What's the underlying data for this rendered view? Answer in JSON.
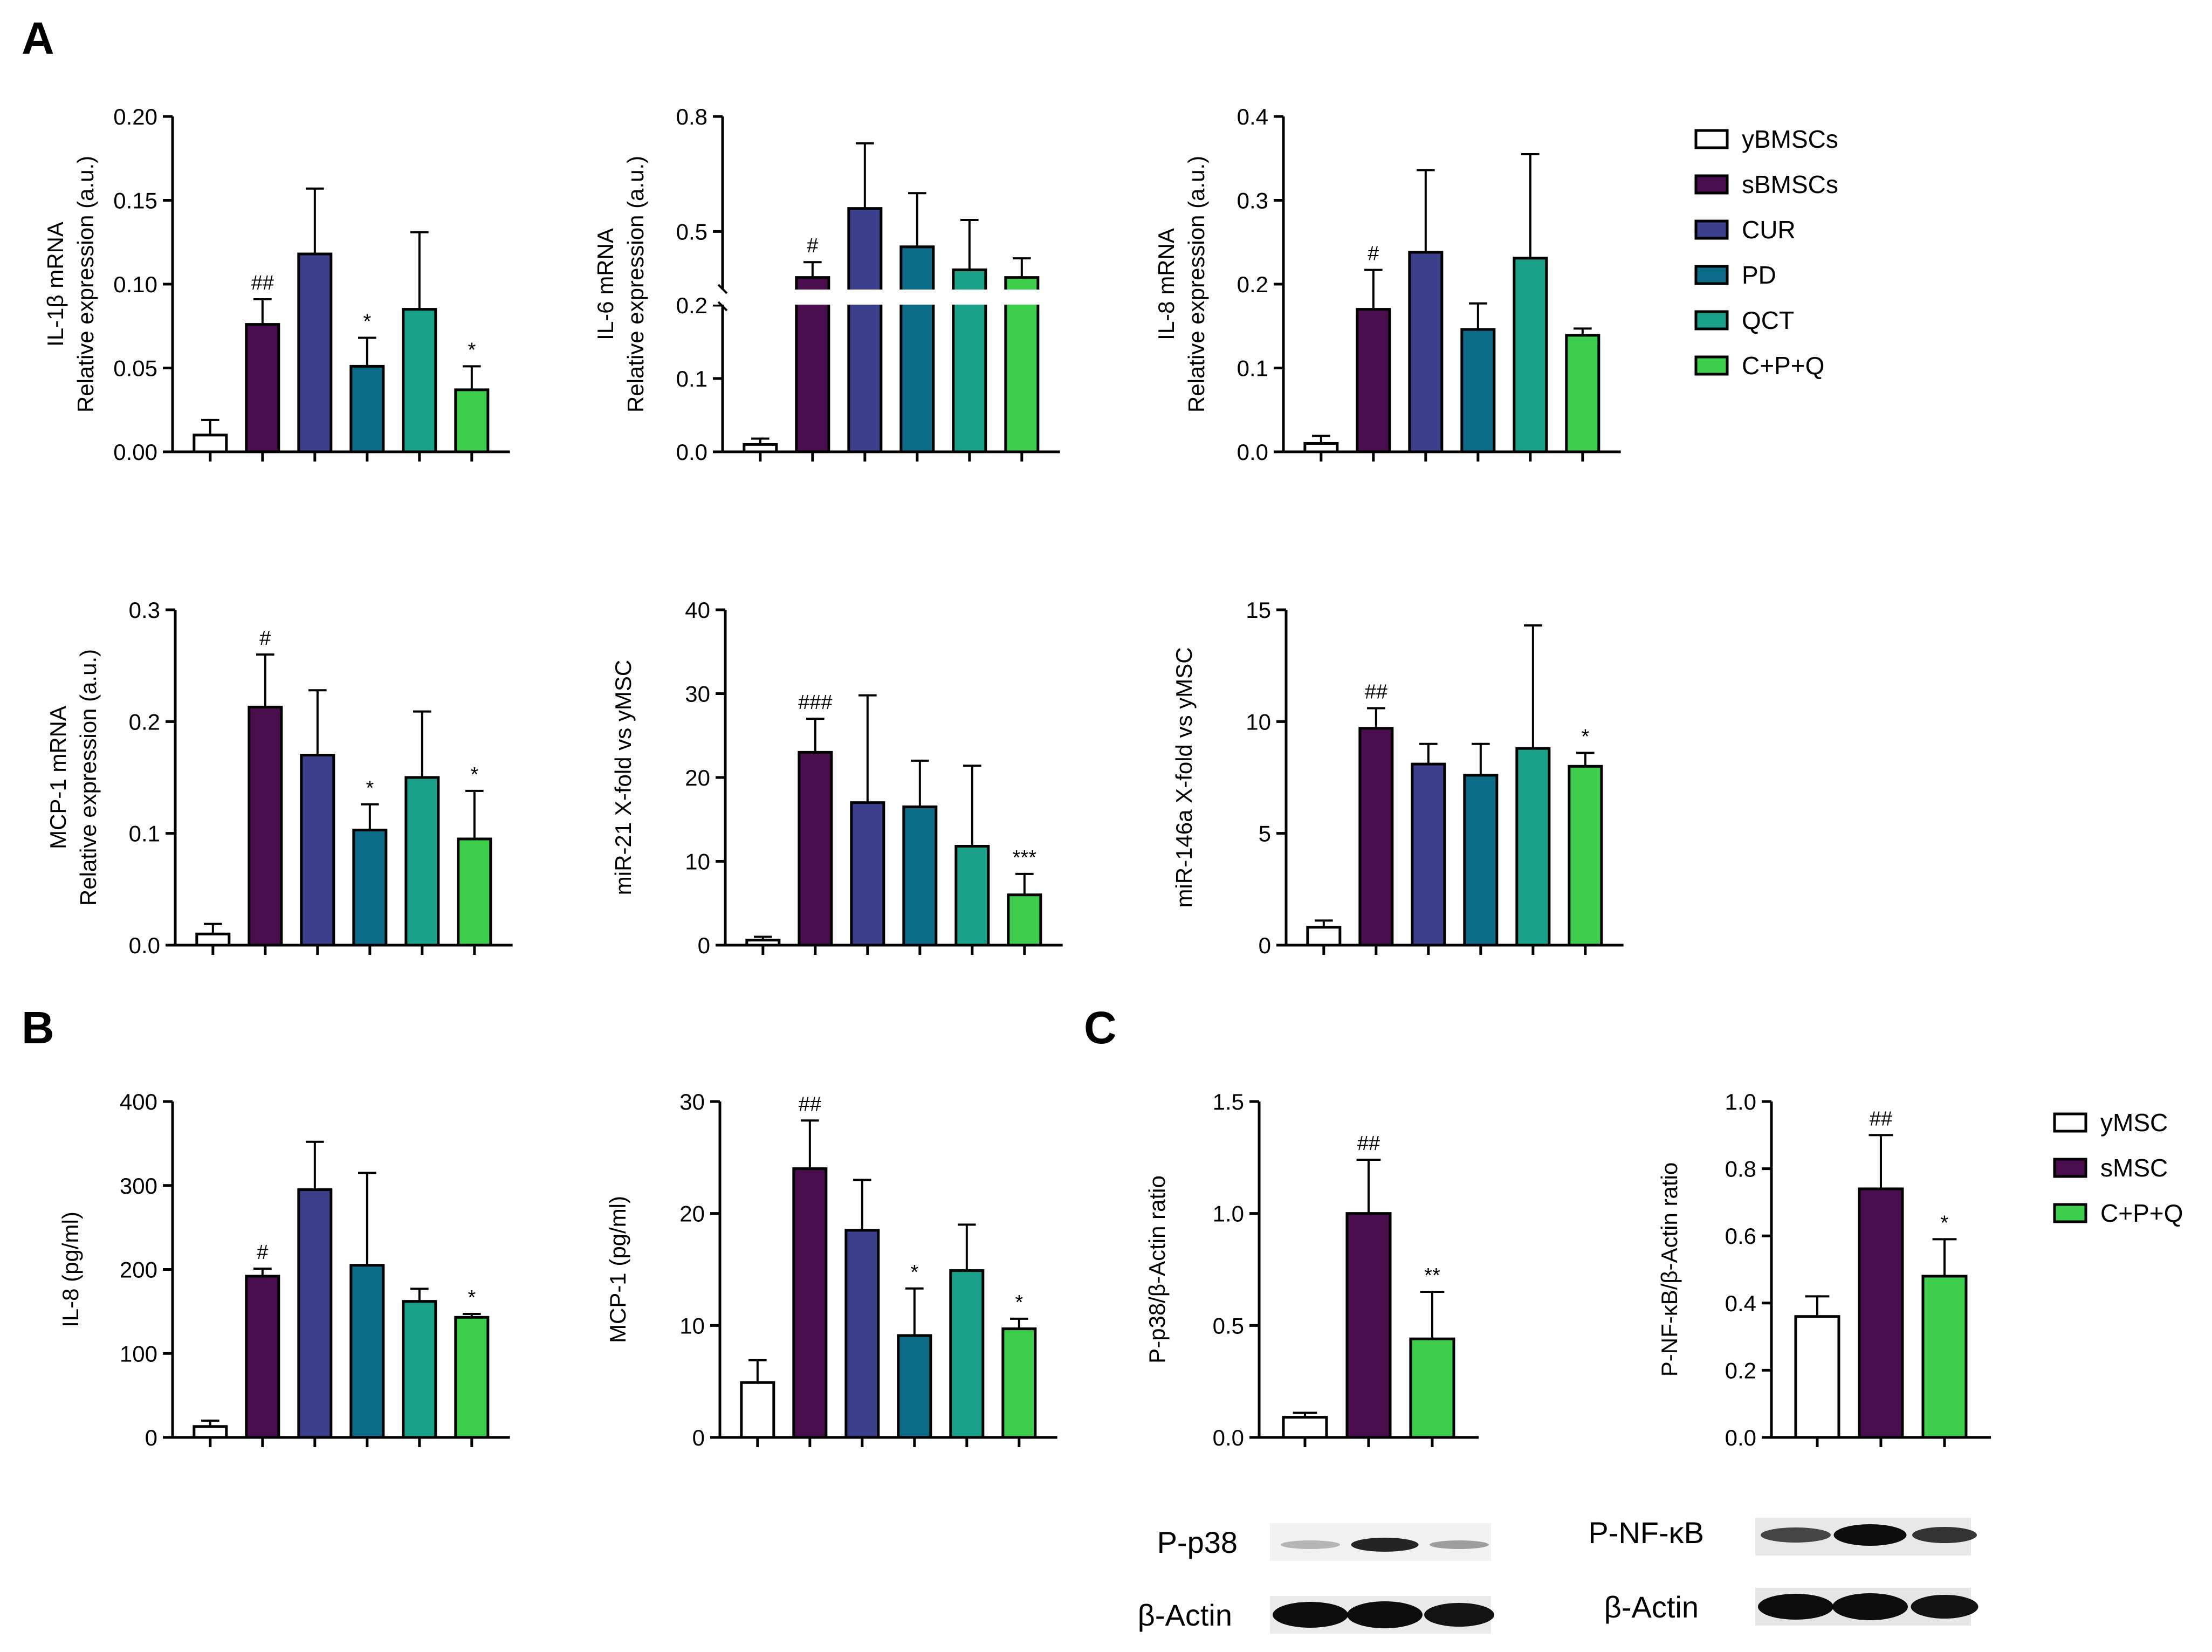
{
  "panel_labels": [
    "A",
    "B",
    "C"
  ],
  "colors": {
    "yBMSCs": "#ffffff",
    "sBMSCs": "#4a0d4e",
    "CUR": "#3b3f8c",
    "PD": "#0c6b86",
    "QCT": "#1aa18a",
    "C+P+Q": "#3dce4b",
    "axis": "#000000"
  },
  "legend_top": [
    {
      "label": "yBMSCs",
      "color": "#ffffff"
    },
    {
      "label": "sBMSCs",
      "color": "#4a0d4e"
    },
    {
      "label": "CUR",
      "color": "#3b3f8c"
    },
    {
      "label": "PD",
      "color": "#0c6b86"
    },
    {
      "label": "QCT",
      "color": "#1aa18a"
    },
    {
      "label": "C+P+Q",
      "color": "#3dce4b"
    }
  ],
  "legend_c": [
    {
      "label": "yMSC",
      "color": "#ffffff"
    },
    {
      "label": "sMSC",
      "color": "#4a0d4e"
    },
    {
      "label": "C+P+Q",
      "color": "#3dce4b"
    }
  ],
  "blots": {
    "left": {
      "labels": [
        "P-p38",
        "β-Actin"
      ]
    },
    "right": {
      "labels": [
        "P-NF-κB",
        "β-Actin"
      ]
    }
  },
  "chart_data": [
    {
      "id": "il1b",
      "panel": "A",
      "type": "bar",
      "ylabel": [
        "IL-1β mRNA",
        "Relative expression (a.u.)"
      ],
      "ylim": [
        0,
        0.2
      ],
      "yticks": [
        "0.00",
        "0.05",
        "0.10",
        "0.15",
        "0.20"
      ],
      "categories": [
        "yBMSCs",
        "sBMSCs",
        "CUR",
        "PD",
        "QCT",
        "C+P+Q"
      ],
      "values": [
        0.01,
        0.076,
        0.118,
        0.051,
        0.085,
        0.037
      ],
      "errors": [
        0.009,
        0.015,
        0.039,
        0.017,
        0.046,
        0.014
      ],
      "annotations": [
        "",
        "##",
        "",
        "*",
        "",
        "*"
      ]
    },
    {
      "id": "il6",
      "panel": "A",
      "type": "bar",
      "ylabel": [
        "IL-6 mRNA",
        "Relative expression (a.u.)"
      ],
      "ylim": [
        0,
        0.8
      ],
      "yticks": [
        "0.0",
        "0.1",
        "0.2",
        "0.5",
        "0.8"
      ],
      "axis_break": {
        "lower": [
          0,
          0.2
        ],
        "upper": [
          0.35,
          0.8
        ]
      },
      "categories": [
        "yBMSCs",
        "sBMSCs",
        "CUR",
        "PD",
        "QCT",
        "C+P+Q"
      ],
      "values": [
        0.01,
        0.38,
        0.56,
        0.46,
        0.4,
        0.38
      ],
      "errors": [
        0.008,
        0.04,
        0.17,
        0.14,
        0.13,
        0.05
      ],
      "annotations": [
        "",
        "#",
        "",
        "",
        "",
        ""
      ]
    },
    {
      "id": "il8mrna",
      "panel": "A",
      "type": "bar",
      "ylabel": [
        "IL-8 mRNA",
        "Relative expression (a.u.)"
      ],
      "ylim": [
        0,
        0.4
      ],
      "yticks": [
        "0.0",
        "0.1",
        "0.2",
        "0.3",
        "0.4"
      ],
      "categories": [
        "yBMSCs",
        "sBMSCs",
        "CUR",
        "PD",
        "QCT",
        "C+P+Q"
      ],
      "values": [
        0.01,
        0.17,
        0.238,
        0.146,
        0.231,
        0.139
      ],
      "errors": [
        0.009,
        0.047,
        0.098,
        0.031,
        0.124,
        0.008
      ],
      "annotations": [
        "",
        "#",
        "",
        "",
        "",
        ""
      ]
    },
    {
      "id": "mcp1mrna",
      "panel": "A",
      "type": "bar",
      "ylabel": [
        "MCP-1 mRNA",
        "Relative expression (a.u.)"
      ],
      "ylim": [
        0,
        0.3
      ],
      "yticks": [
        "0.0",
        "0.1",
        "0.2",
        "0.3"
      ],
      "categories": [
        "yBMSCs",
        "sBMSCs",
        "CUR",
        "PD",
        "QCT",
        "C+P+Q"
      ],
      "values": [
        0.01,
        0.213,
        0.17,
        0.103,
        0.15,
        0.095
      ],
      "errors": [
        0.009,
        0.047,
        0.058,
        0.023,
        0.059,
        0.043
      ],
      "annotations": [
        "",
        "#",
        "",
        "*",
        "",
        "*"
      ]
    },
    {
      "id": "mir21",
      "panel": "A",
      "type": "bar",
      "ylabel": [
        "miR-21 X-fold vs yMSC"
      ],
      "ylim": [
        0,
        40
      ],
      "yticks": [
        "0",
        "10",
        "20",
        "30",
        "40"
      ],
      "categories": [
        "yBMSCs",
        "sBMSCs",
        "CUR",
        "PD",
        "QCT",
        "C+P+Q"
      ],
      "values": [
        0.6,
        23,
        17,
        16.5,
        11.8,
        6
      ],
      "errors": [
        0.4,
        4,
        12.8,
        5.5,
        9.6,
        2.5
      ],
      "annotations": [
        "",
        "###",
        "",
        "",
        "",
        "***"
      ]
    },
    {
      "id": "mir146a",
      "panel": "A",
      "type": "bar",
      "ylabel": [
        "miR-146a X-fold vs yMSC"
      ],
      "ylim": [
        0,
        15
      ],
      "yticks": [
        "0",
        "5",
        "10",
        "15"
      ],
      "categories": [
        "yBMSCs",
        "sBMSCs",
        "CUR",
        "PD",
        "QCT",
        "C+P+Q"
      ],
      "values": [
        0.8,
        9.7,
        8.1,
        7.6,
        8.8,
        8
      ],
      "errors": [
        0.3,
        0.9,
        0.9,
        1.4,
        5.5,
        0.6
      ],
      "annotations": [
        "",
        "##",
        "",
        "",
        "",
        "*"
      ]
    },
    {
      "id": "il8prot",
      "panel": "B",
      "type": "bar",
      "ylabel": [
        "IL-8 (pg/ml)"
      ],
      "ylim": [
        0,
        400
      ],
      "yticks": [
        "0",
        "100",
        "200",
        "300",
        "400"
      ],
      "categories": [
        "yBMSCs",
        "sBMSCs",
        "CUR",
        "PD",
        "QCT",
        "C+P+Q"
      ],
      "values": [
        13,
        192,
        295,
        205,
        162,
        143
      ],
      "errors": [
        7,
        9,
        57,
        110,
        15,
        4
      ],
      "annotations": [
        "",
        "#",
        "",
        "",
        "",
        "*"
      ]
    },
    {
      "id": "mcp1prot",
      "panel": "B",
      "type": "bar",
      "ylabel": [
        "MCP-1 (pg/ml)"
      ],
      "ylim": [
        0,
        30
      ],
      "yticks": [
        "0",
        "10",
        "20",
        "30"
      ],
      "categories": [
        "yBMSCs",
        "sBMSCs",
        "CUR",
        "PD",
        "QCT",
        "C+P+Q"
      ],
      "values": [
        4.9,
        24,
        18.5,
        9.1,
        14.9,
        9.7
      ],
      "errors": [
        2,
        4.3,
        4.5,
        4.2,
        4.1,
        0.9
      ],
      "annotations": [
        "",
        "##",
        "",
        "*",
        "",
        "*"
      ]
    },
    {
      "id": "pp38",
      "panel": "C",
      "type": "bar",
      "ylabel": [
        "P-p38/β-Actin ratio"
      ],
      "ylim": [
        0,
        1.5
      ],
      "yticks": [
        "0.0",
        "0.5",
        "1.0",
        "1.5"
      ],
      "categories": [
        "yMSC",
        "sMSC",
        "C+P+Q"
      ],
      "values": [
        0.09,
        1.0,
        0.44
      ],
      "errors": [
        0.02,
        0.24,
        0.21
      ],
      "annotations": [
        "",
        "##",
        "**"
      ]
    },
    {
      "id": "pnfkb",
      "panel": "C",
      "type": "bar",
      "ylabel": [
        "P-NF-κB/β-Actin ratio"
      ],
      "ylim": [
        0,
        1.0
      ],
      "yticks": [
        "0.0",
        "0.2",
        "0.4",
        "0.6",
        "0.8",
        "1.0"
      ],
      "categories": [
        "yMSC",
        "sMSC",
        "C+P+Q"
      ],
      "values": [
        0.36,
        0.74,
        0.48
      ],
      "errors": [
        0.06,
        0.16,
        0.11
      ],
      "annotations": [
        "",
        "##",
        "*"
      ]
    }
  ]
}
